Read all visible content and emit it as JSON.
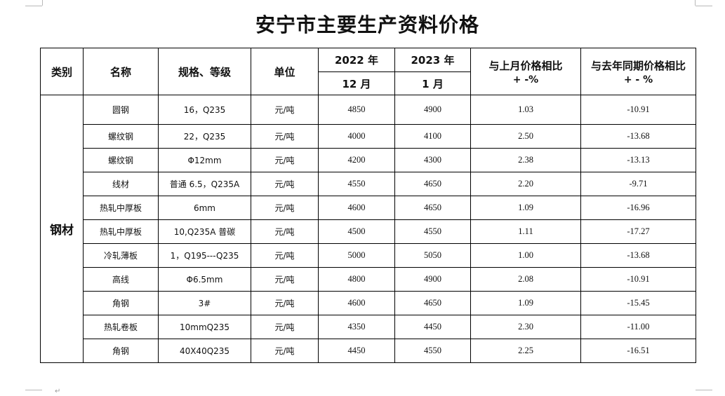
{
  "page": {
    "title": "安宁市主要生产资料价格",
    "page_marker": "↵"
  },
  "table": {
    "headers": {
      "category": "类别",
      "name": "名称",
      "spec": "规格、等级",
      "unit": "单位",
      "year_prev": "2022 年",
      "year_curr": "2023 年",
      "month_prev": "12 月",
      "month_curr": "1 月",
      "mom": "与上月价格相比",
      "mom_sign": "+ -%",
      "yoy": "与去年同期价格相比",
      "yoy_sign": "+ - %"
    },
    "category": "钢材",
    "rows": [
      {
        "name": "圆钢",
        "spec": "16，Q235",
        "unit": "元/吨",
        "price_prev": "4850",
        "price_curr": "4900",
        "mom": "1.03",
        "yoy": "-10.91"
      },
      {
        "name": "螺纹钢",
        "spec": "22，Q235",
        "unit": "元/吨",
        "price_prev": "4000",
        "price_curr": "4100",
        "mom": "2.50",
        "yoy": "-13.68"
      },
      {
        "name": "螺纹钢",
        "spec": "Φ12mm",
        "unit": "元/吨",
        "price_prev": "4200",
        "price_curr": "4300",
        "mom": "2.38",
        "yoy": "-13.13"
      },
      {
        "name": "线材",
        "spec": "普通 6.5，Q235A",
        "unit": "元/吨",
        "price_prev": "4550",
        "price_curr": "4650",
        "mom": "2.20",
        "yoy": "-9.71"
      },
      {
        "name": "热轧中厚板",
        "spec": "6mm",
        "unit": "元/吨",
        "price_prev": "4600",
        "price_curr": "4650",
        "mom": "1.09",
        "yoy": "-16.96"
      },
      {
        "name": "热轧中厚板",
        "spec": "10,Q235A 普碳",
        "unit": "元/吨",
        "price_prev": "4500",
        "price_curr": "4550",
        "mom": "1.11",
        "yoy": "-17.27"
      },
      {
        "name": "冷轧薄板",
        "spec": "1，Q195---Q235",
        "unit": "元/吨",
        "price_prev": "5000",
        "price_curr": "5050",
        "mom": "1.00",
        "yoy": "-13.68"
      },
      {
        "name": "高线",
        "spec": "Φ6.5mm",
        "unit": "元/吨",
        "price_prev": "4800",
        "price_curr": "4900",
        "mom": "2.08",
        "yoy": "-10.91"
      },
      {
        "name": "角钢",
        "spec": "3#",
        "unit": "元/吨",
        "price_prev": "4600",
        "price_curr": "4650",
        "mom": "1.09",
        "yoy": "-15.45"
      },
      {
        "name": "热轧卷板",
        "spec": "10mmQ235",
        "unit": "元/吨",
        "price_prev": "4350",
        "price_curr": "4450",
        "mom": "2.30",
        "yoy": "-11.00"
      },
      {
        "name": "角钢",
        "spec": "40X40Q235",
        "unit": "元/吨",
        "price_prev": "4450",
        "price_curr": "4550",
        "mom": "2.25",
        "yoy": "-16.51"
      }
    ]
  }
}
